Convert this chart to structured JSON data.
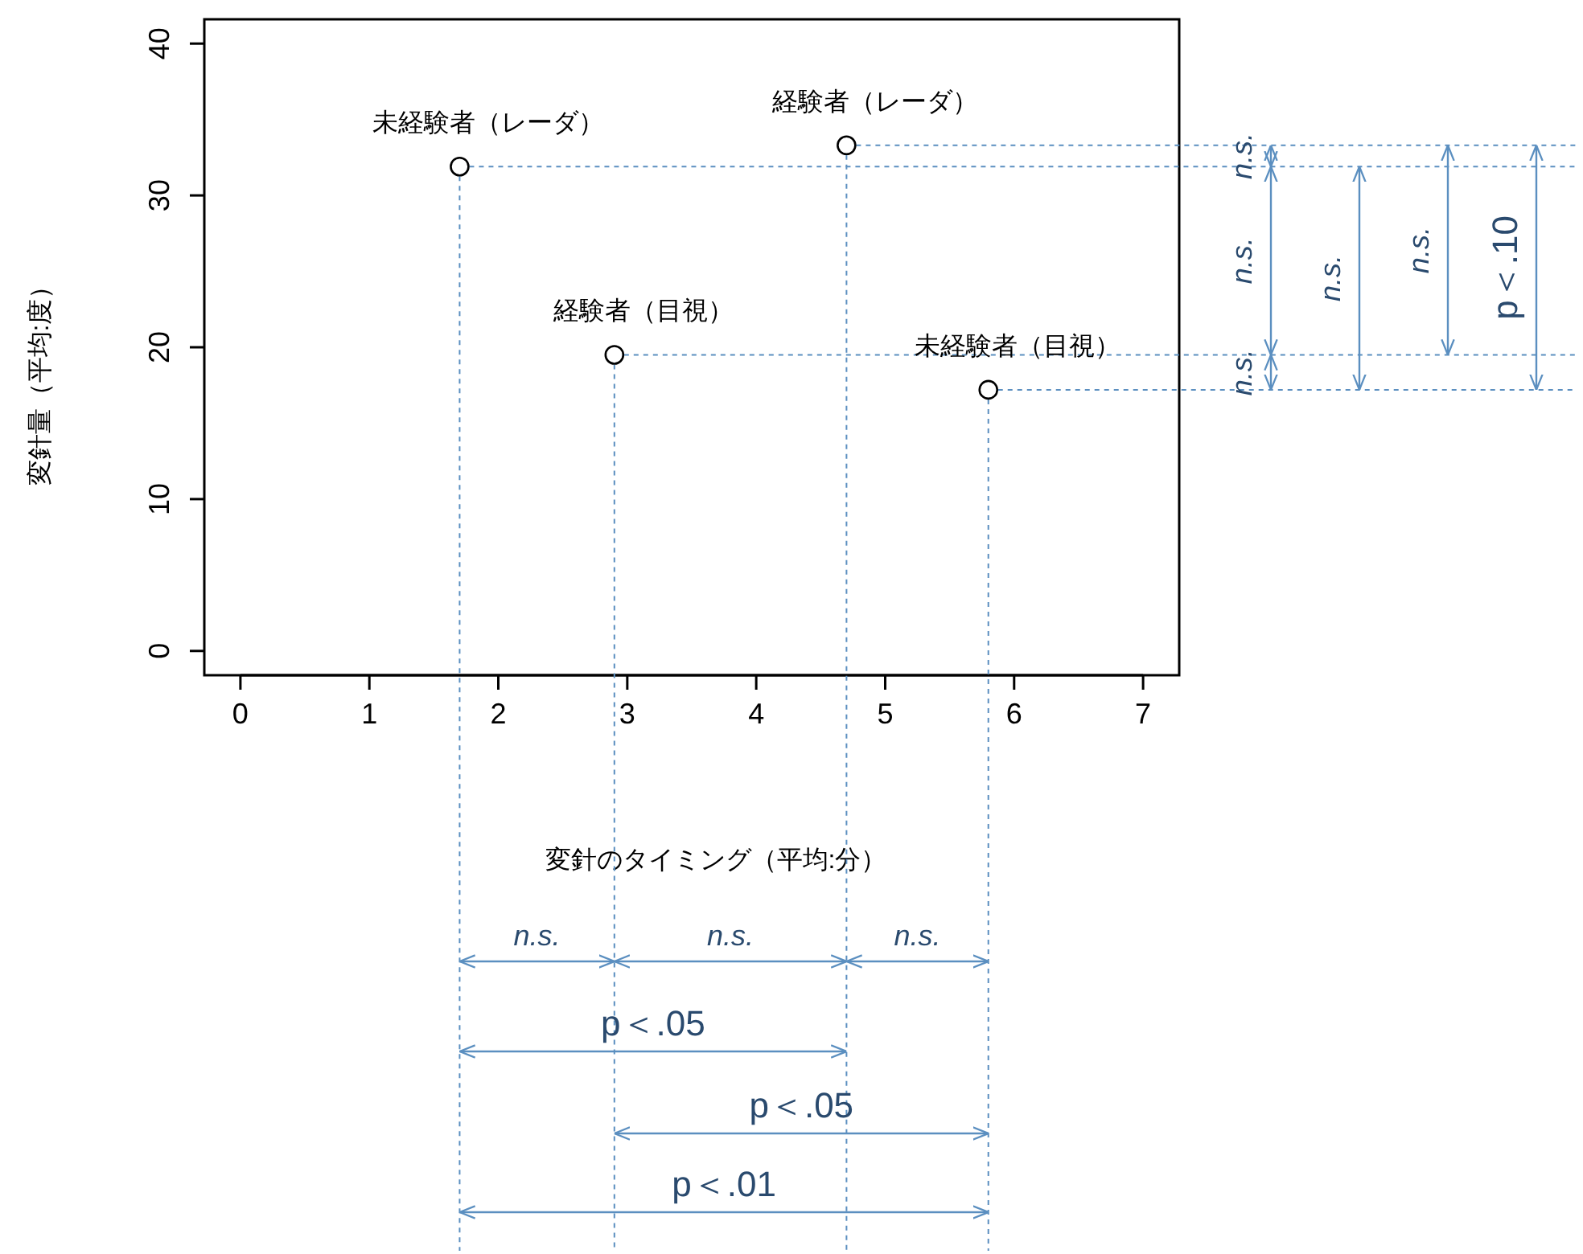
{
  "chart_data": {
    "type": "scatter",
    "xlabel": "変針のタイミング（平均:分）",
    "ylabel": "変針量（平均:度）",
    "x": [
      1.7,
      4.7,
      2.9,
      5.8
    ],
    "values": [
      31.9,
      33.3,
      19.5,
      17.2
    ],
    "color": "#000000",
    "marker": "circle",
    "grid": false,
    "ref_lines": [
      {
        "axis": "x",
        "value": 1.7,
        "color": "#5b8fc0",
        "line_style": "dashed"
      },
      {
        "axis": "x",
        "value": 4.7,
        "color": "#5b8fc0",
        "line_style": "dashed"
      },
      {
        "axis": "x",
        "value": 2.9,
        "color": "#5b8fc0",
        "line_style": "dashed"
      },
      {
        "axis": "x",
        "value": 5.8,
        "color": "#5b8fc0",
        "line_style": "dashed"
      },
      {
        "axis": "y",
        "value": 31.9,
        "color": "#5b8fc0",
        "line_style": "dashed"
      },
      {
        "axis": "y",
        "value": 33.3,
        "color": "#5b8fc0",
        "line_style": "dashed"
      },
      {
        "axis": "y",
        "value": 19.5,
        "color": "#5b8fc0",
        "line_style": "dashed"
      },
      {
        "axis": "y",
        "value": 17.2,
        "color": "#5b8fc0",
        "line_style": "dashed"
      }
    ],
    "xlim": [
      -0.28,
      7.28
    ],
    "ylim": [
      -1.6,
      41.6
    ],
    "xticks": [
      0,
      1,
      2,
      3,
      4,
      5,
      6,
      7
    ],
    "yticks": [
      0,
      10,
      20,
      30,
      40
    ],
    "annotations": [
      {
        "text": "未経験者（レーダ）",
        "x": 1.7,
        "y": 31.9
      },
      {
        "text": "経験者（レーダ）",
        "x": 4.7,
        "y": 33.3
      },
      {
        "text": "経験者（目視）",
        "x": 2.9,
        "y": 19.5
      },
      {
        "text": "未経験者（目視）",
        "x": 5.8,
        "y": 17.2
      },
      "n.s.",
      "n.s.",
      "n.s.",
      "p＜.05",
      "p＜.05",
      "p＜.01",
      "n.s.",
      "n.s.",
      "n.s.",
      "n.s.",
      "n.s.",
      "p＜.10"
    ]
  }
}
